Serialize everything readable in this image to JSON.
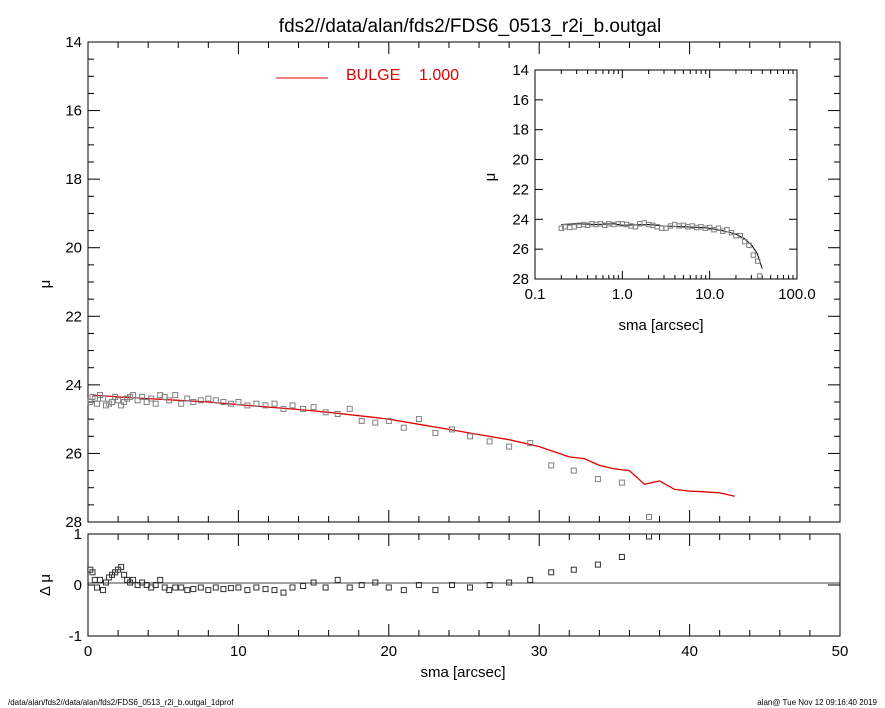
{
  "title": "fds2//data/alan/fds2/FDS6_0513_r2i_b.outgal",
  "footer_left": "/data/alan/fds2//data/alan/fds2/FDS6_0513_r2i_b.outgal_1dprof",
  "footer_right": "alan@  Tue Nov 12 09:16:40 2019",
  "colors": {
    "model": "#e00000",
    "data": "#808080",
    "residual": "#303030"
  },
  "chart_data": [
    {
      "type": "scatter",
      "panel": "main",
      "xlabel": "",
      "ylabel": "μ",
      "xlim": [
        0,
        50
      ],
      "ylim": [
        28,
        14
      ],
      "xticks": [
        0,
        10,
        20,
        30,
        40,
        50
      ],
      "xticklabels": [
        "",
        "",
        "",
        "",
        "",
        ""
      ],
      "yticks": [
        14,
        16,
        18,
        20,
        22,
        24,
        26,
        28
      ],
      "yticklabels": [
        "14",
        "16",
        "18",
        "20",
        "22",
        "24",
        "26",
        "28"
      ],
      "legend": {
        "label": "BULGE",
        "value": "1.000",
        "placement": "top-center"
      },
      "series": [
        {
          "name": "BULGE",
          "style": "line",
          "x": [
            0.3,
            2,
            4,
            6,
            8,
            10,
            12,
            14,
            16,
            18,
            20,
            22,
            24,
            26,
            28,
            30,
            31,
            32,
            33,
            34,
            35,
            36,
            37,
            38,
            39,
            40,
            41,
            42,
            43
          ],
          "y": [
            24.3,
            24.35,
            24.4,
            24.45,
            24.5,
            24.58,
            24.65,
            24.72,
            24.8,
            24.9,
            25.0,
            25.15,
            25.3,
            25.45,
            25.6,
            25.8,
            25.95,
            26.1,
            26.15,
            26.35,
            26.45,
            26.5,
            26.9,
            26.8,
            27.05,
            27.1,
            27.12,
            27.15,
            27.25
          ]
        },
        {
          "style": "markers",
          "x": [
            0.15,
            0.3,
            0.45,
            0.6,
            0.8,
            1.0,
            1.2,
            1.4,
            1.6,
            1.8,
            2.0,
            2.2,
            2.4,
            2.6,
            2.8,
            3.0,
            3.3,
            3.6,
            3.9,
            4.2,
            4.5,
            4.8,
            5.1,
            5.4,
            5.8,
            6.2,
            6.6,
            7.0,
            7.5,
            8.0,
            8.5,
            9.0,
            9.5,
            10.0,
            10.6,
            11.2,
            11.8,
            12.4,
            13.0,
            13.6,
            14.3,
            15.0,
            15.8,
            16.6,
            17.4,
            18.2,
            19.1,
            20.0,
            21.0,
            22.0,
            23.1,
            24.2,
            25.4,
            26.7,
            28.0,
            29.4,
            30.8,
            32.3,
            33.9,
            35.5,
            37.3
          ],
          "y": [
            24.5,
            24.35,
            24.4,
            24.55,
            24.3,
            24.4,
            24.6,
            24.55,
            24.5,
            24.35,
            24.45,
            24.6,
            24.5,
            24.4,
            24.35,
            24.3,
            24.45,
            24.35,
            24.5,
            24.4,
            24.55,
            24.3,
            24.35,
            24.45,
            24.3,
            24.55,
            24.4,
            24.5,
            24.45,
            24.4,
            24.45,
            24.5,
            24.55,
            24.5,
            24.6,
            24.55,
            24.6,
            24.55,
            24.7,
            24.6,
            24.7,
            24.65,
            24.8,
            24.85,
            24.7,
            25.05,
            25.1,
            25.05,
            25.25,
            25.0,
            25.4,
            25.3,
            25.5,
            25.65,
            25.8,
            25.7,
            26.35,
            26.5,
            26.75,
            26.85,
            27.85
          ]
        }
      ]
    },
    {
      "type": "scatter",
      "panel": "residual",
      "xlabel": "sma [arcsec]",
      "ylabel": "Δ μ",
      "xlim": [
        0,
        50
      ],
      "ylim": [
        -1,
        1
      ],
      "xticks": [
        0,
        10,
        20,
        30,
        40,
        50
      ],
      "xticklabels": [
        "0",
        "10",
        "20",
        "30",
        "40",
        "50"
      ],
      "yticks": [
        -1,
        0,
        1
      ],
      "yticklabels": [
        "-1",
        "0",
        "1"
      ],
      "series": [
        {
          "style": "markers",
          "x": [
            0.15,
            0.3,
            0.45,
            0.6,
            0.8,
            1.0,
            1.2,
            1.4,
            1.6,
            1.8,
            2.0,
            2.2,
            2.4,
            2.6,
            2.8,
            3.0,
            3.3,
            3.6,
            3.9,
            4.2,
            4.5,
            4.8,
            5.1,
            5.4,
            5.8,
            6.2,
            6.6,
            7.0,
            7.5,
            8.0,
            8.5,
            9.0,
            9.5,
            10.0,
            10.6,
            11.2,
            11.8,
            12.4,
            13.0,
            13.6,
            14.3,
            15.0,
            15.8,
            16.6,
            17.4,
            18.2,
            19.1,
            20.0,
            21.0,
            22.0,
            23.1,
            24.2,
            25.4,
            26.7,
            28.0,
            29.4,
            30.8,
            32.3,
            33.9,
            35.5,
            37.3
          ],
          "y": [
            0.3,
            0.25,
            0.1,
            -0.05,
            0.1,
            -0.1,
            0.05,
            0.15,
            0.2,
            0.25,
            0.3,
            0.35,
            0.2,
            0.1,
            0.05,
            0.1,
            0.0,
            0.05,
            0.0,
            -0.05,
            0.0,
            0.1,
            -0.05,
            -0.1,
            -0.05,
            -0.05,
            -0.1,
            -0.08,
            -0.05,
            -0.1,
            -0.05,
            -0.08,
            -0.06,
            -0.05,
            -0.1,
            -0.05,
            -0.08,
            -0.1,
            -0.15,
            -0.05,
            -0.02,
            0.05,
            -0.05,
            0.1,
            -0.05,
            0.0,
            0.05,
            -0.05,
            -0.1,
            0.0,
            -0.1,
            0.0,
            -0.05,
            0.0,
            0.05,
            0.1,
            0.25,
            0.3,
            0.4,
            0.55,
            0.95
          ]
        }
      ]
    },
    {
      "type": "scatter",
      "panel": "inset",
      "xlabel": "sma [arcsec]",
      "ylabel": "μ",
      "xscale": "log",
      "xlim": [
        0.1,
        100
      ],
      "ylim": [
        28,
        14
      ],
      "xticks": [
        0.1,
        1,
        10,
        100
      ],
      "xticklabels": [
        "0.1",
        "1.0",
        "10.0",
        "100.0"
      ],
      "yticks": [
        14,
        16,
        18,
        20,
        22,
        24,
        26,
        28
      ],
      "yticklabels": [
        "14",
        "16",
        "18",
        "20",
        "22",
        "24",
        "26",
        "28"
      ],
      "series": [
        {
          "style": "line",
          "x": [
            0.2,
            0.3,
            0.5,
            0.8,
            1,
            2,
            3,
            5,
            8,
            10,
            15,
            20,
            25,
            30,
            35,
            40
          ],
          "y": [
            24.35,
            24.3,
            24.35,
            24.3,
            24.4,
            24.35,
            24.45,
            24.5,
            24.55,
            24.6,
            24.8,
            25.0,
            25.3,
            25.7,
            26.3,
            27.3
          ]
        },
        {
          "style": "markers",
          "x": [
            0.2,
            0.22,
            0.25,
            0.28,
            0.32,
            0.36,
            0.4,
            0.45,
            0.5,
            0.56,
            0.63,
            0.7,
            0.8,
            0.9,
            1.0,
            1.12,
            1.26,
            1.41,
            1.58,
            1.78,
            2.0,
            2.24,
            2.51,
            2.82,
            3.16,
            3.55,
            3.98,
            4.47,
            5.01,
            5.62,
            6.31,
            7.08,
            7.94,
            8.91,
            10.0,
            11.2,
            12.6,
            14.1,
            15.8,
            17.8,
            20.0,
            22.4,
            25.1,
            28.2,
            31.6,
            35.5,
            37.3
          ],
          "y": [
            24.6,
            24.5,
            24.55,
            24.5,
            24.4,
            24.35,
            24.4,
            24.3,
            24.35,
            24.3,
            24.4,
            24.3,
            24.35,
            24.3,
            24.3,
            24.35,
            24.45,
            24.5,
            24.3,
            24.25,
            24.35,
            24.4,
            24.5,
            24.6,
            24.6,
            24.45,
            24.35,
            24.45,
            24.4,
            24.5,
            24.45,
            24.55,
            24.5,
            24.6,
            24.55,
            24.7,
            24.6,
            24.8,
            24.7,
            24.9,
            25.1,
            25.1,
            25.5,
            25.75,
            26.4,
            26.8,
            27.8
          ]
        }
      ]
    }
  ]
}
